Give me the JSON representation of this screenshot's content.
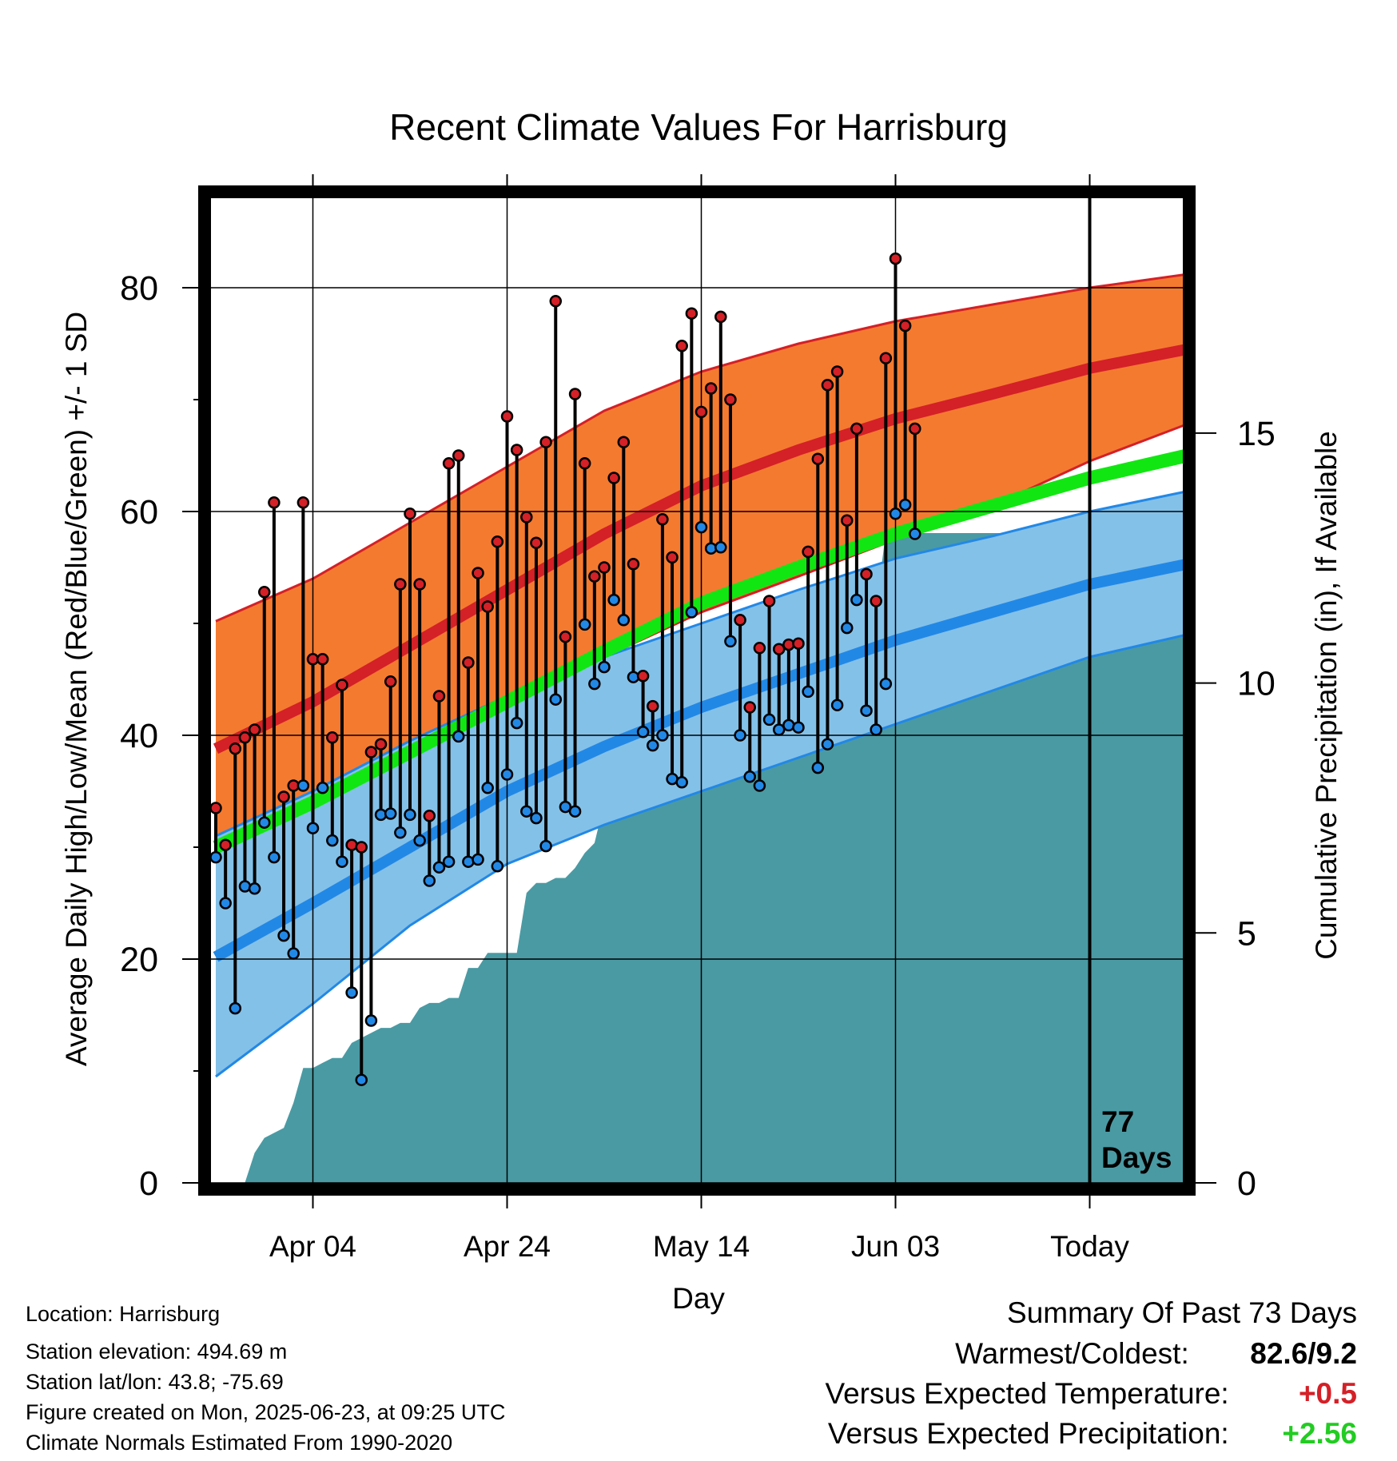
{
  "chart_data": {
    "type": "line",
    "title": "Recent Climate Values For Harrisburg",
    "xlabel": "Day",
    "ylabel": "Average Daily High/Low/Mean (Red/Blue/Green) +/- 1 SD",
    "y2label": "Cumulative Precipitation (in), If Available",
    "ylim": [
      0,
      88
    ],
    "y2lim": [
      0,
      19.7
    ],
    "yticks": [
      0,
      20,
      40,
      60,
      80
    ],
    "y2ticks": [
      0,
      5,
      10,
      15
    ],
    "xticks": [
      {
        "day": 10,
        "label": "Apr 04"
      },
      {
        "day": 30,
        "label": "Apr 24"
      },
      {
        "day": 50,
        "label": "May 14"
      },
      {
        "day": 70,
        "label": "Jun 03"
      },
      {
        "day": 90,
        "label": "Today"
      }
    ],
    "today_label_lines": [
      "77",
      "Days"
    ],
    "grid": true,
    "normals": {
      "x": [
        0,
        10,
        20,
        30,
        40,
        50,
        60,
        70,
        80,
        90,
        100
      ],
      "high_sd_upper": [
        50.2,
        54,
        59,
        64,
        69,
        72.5,
        75,
        77,
        78.5,
        80,
        81.2
      ],
      "high_mean": [
        38.8,
        43,
        48,
        53,
        58,
        62.3,
        65.5,
        68.3,
        70.5,
        72.8,
        74.5
      ],
      "high_sd_lower": [
        31,
        34,
        38,
        42.5,
        47,
        51,
        54.2,
        57.5,
        60.5,
        64.5,
        67.8
      ],
      "mean": [
        30,
        34,
        38.5,
        43,
        47.5,
        51.8,
        55,
        58,
        60.5,
        63,
        65
      ],
      "low_sd_upper": [
        31,
        35,
        39.5,
        43.5,
        47,
        50,
        53,
        55.8,
        57.8,
        60,
        61.8
      ],
      "low_mean": [
        20.2,
        25,
        30,
        35,
        39,
        42.5,
        45.5,
        48.5,
        51,
        53.5,
        55.3
      ],
      "low_sd_lower": [
        9.5,
        16,
        23,
        28.5,
        32,
        35,
        38,
        41,
        44,
        47,
        49
      ]
    },
    "series": [
      {
        "name": "High",
        "color": "#d42027",
        "x": [
          0,
          1,
          2,
          3,
          4,
          5,
          6,
          7,
          8,
          9,
          10,
          11,
          12,
          13,
          14,
          15,
          16,
          17,
          18,
          19,
          20,
          21,
          22,
          23,
          24,
          25,
          26,
          27,
          28,
          29,
          30,
          31,
          32,
          33,
          34,
          35,
          36,
          37,
          38,
          39,
          40,
          41,
          42,
          43,
          44,
          45,
          46,
          47,
          48,
          49,
          50,
          51,
          52,
          53,
          54,
          55,
          56,
          57,
          58,
          59,
          60,
          61,
          62,
          63,
          64,
          65,
          66,
          67,
          68,
          69,
          70,
          71,
          72
        ],
        "values": [
          33.5,
          30.2,
          38.8,
          39.8,
          40.5,
          52.8,
          60.8,
          34.5,
          35.5,
          60.8,
          46.8,
          46.8,
          39.8,
          44.5,
          30.2,
          30,
          38.5,
          39.2,
          44.8,
          53.5,
          59.8,
          53.5,
          32.8,
          43.5,
          64.3,
          65,
          46.5,
          54.5,
          51.5,
          57.3,
          68.5,
          65.5,
          59.5,
          57.2,
          66.2,
          78.8,
          48.8,
          70.5,
          64.3,
          54.2,
          55,
          63,
          66.2,
          55.3,
          45.3,
          42.6,
          59.3,
          55.9,
          74.8,
          77.7,
          68.9,
          71,
          77.4,
          70,
          50.3,
          42.5,
          47.8,
          52,
          47.7,
          48.1,
          48.2,
          56.4,
          64.7,
          71.3,
          72.5,
          59.2,
          67.4,
          54.4,
          52,
          73.7,
          82.6,
          76.6,
          67.4
        ]
      },
      {
        "name": "Low",
        "color": "#2288e6",
        "x": [
          0,
          1,
          2,
          3,
          4,
          5,
          6,
          7,
          8,
          9,
          10,
          11,
          12,
          13,
          14,
          15,
          16,
          17,
          18,
          19,
          20,
          21,
          22,
          23,
          24,
          25,
          26,
          27,
          28,
          29,
          30,
          31,
          32,
          33,
          34,
          35,
          36,
          37,
          38,
          39,
          40,
          41,
          42,
          43,
          44,
          45,
          46,
          47,
          48,
          49,
          50,
          51,
          52,
          53,
          54,
          55,
          56,
          57,
          58,
          59,
          60,
          61,
          62,
          63,
          64,
          65,
          66,
          67,
          68,
          69,
          70,
          71,
          72
        ],
        "values": [
          29.1,
          25,
          15.6,
          26.5,
          26.3,
          32.2,
          29.1,
          22.1,
          20.5,
          35.5,
          31.7,
          35.3,
          30.6,
          28.7,
          17,
          9.2,
          14.5,
          32.9,
          33,
          31.3,
          32.9,
          30.6,
          27,
          28.2,
          28.7,
          39.9,
          28.7,
          28.9,
          35.3,
          28.3,
          36.5,
          41.1,
          33.2,
          32.6,
          30.1,
          43.2,
          33.6,
          33.2,
          49.9,
          44.6,
          46.1,
          52.1,
          50.3,
          45.2,
          40.3,
          39.1,
          40,
          36.1,
          35.8,
          51,
          58.6,
          56.7,
          56.8,
          48.4,
          40,
          36.3,
          35.5,
          41.4,
          40.5,
          40.9,
          40.7,
          43.9,
          37.1,
          39.2,
          42.7,
          49.6,
          52.1,
          42.2,
          40.5,
          44.6,
          59.8,
          60.6,
          58
        ]
      },
      {
        "name": "Precipitation",
        "color": "#4a9aa3",
        "x": [
          0,
          3,
          4,
          5,
          6,
          7,
          8,
          9,
          10,
          11,
          12,
          13,
          14,
          15,
          16,
          17,
          18,
          19,
          20,
          21,
          22,
          23,
          24,
          25,
          26,
          27,
          28,
          29,
          30,
          31,
          32,
          33,
          34,
          35,
          36,
          37,
          38,
          39,
          40,
          41,
          42,
          43,
          44,
          45,
          46,
          47,
          48,
          49,
          50,
          51,
          52,
          53,
          54,
          55,
          56,
          57,
          58,
          59,
          60,
          61,
          62,
          63,
          64,
          65,
          66,
          67,
          68,
          69,
          70,
          71,
          72,
          73,
          74,
          75,
          76,
          77,
          78,
          79,
          80,
          81,
          82,
          83,
          84,
          85,
          86,
          87,
          88,
          89,
          90,
          91,
          92,
          93,
          94,
          95,
          96,
          97,
          98,
          99,
          100
        ],
        "values": [
          0,
          0,
          0.6,
          0.9,
          1,
          1.1,
          1.6,
          2.3,
          2.3,
          2.4,
          2.5,
          2.5,
          2.8,
          2.9,
          3,
          3.1,
          3.1,
          3.2,
          3.2,
          3.5,
          3.6,
          3.6,
          3.7,
          3.7,
          4.3,
          4.3,
          4.6,
          4.6,
          4.6,
          4.6,
          5.8,
          6,
          6,
          6.1,
          6.1,
          6.3,
          6.6,
          6.8,
          7.6,
          8.2,
          8.3,
          8.5,
          8.5,
          8.5,
          8.5,
          8.6,
          8.6,
          8.6,
          9.5,
          10.4,
          10.4,
          10.5,
          10.6,
          10.9,
          11,
          11,
          11,
          11.1,
          11.1,
          11.2,
          11.3,
          11.3,
          11.3,
          11.4,
          11.4,
          11.4,
          11.5,
          13,
          13,
          13,
          13,
          13,
          13,
          13,
          13,
          13,
          13,
          13,
          13,
          13,
          13,
          13,
          13,
          13,
          13,
          13,
          13,
          13,
          13,
          13,
          13,
          13,
          13,
          13,
          13,
          13,
          13,
          13,
          13
        ]
      }
    ]
  },
  "info": {
    "location": "Location: Harrisburg",
    "elevation": "Station elevation: 494.69 m",
    "latlon": "Station lat/lon: 43.8; -75.69",
    "created": "Figure created on Mon, 2025-06-23, at 09:25 UTC",
    "normals": "Climate Normals Estimated From 1990-2020"
  },
  "summary": {
    "title": "Summary Of Past 73 Days",
    "warm_cold_label": "Warmest/Coldest:",
    "warm_cold_value": "82.6/9.2",
    "temp_label": "Versus Expected Temperature:",
    "temp_value": "+0.5",
    "temp_color": "#d42027",
    "precip_label": "Versus Expected Precipitation:",
    "precip_value": "+2.56",
    "precip_color": "#22cc22"
  },
  "colors": {
    "high_band": "#f47a30",
    "high_mean": "#d42027",
    "mean": "#12e612",
    "low_band": "#84c1e8",
    "low_mean": "#2288e6",
    "precip": "#4a9aa3"
  }
}
